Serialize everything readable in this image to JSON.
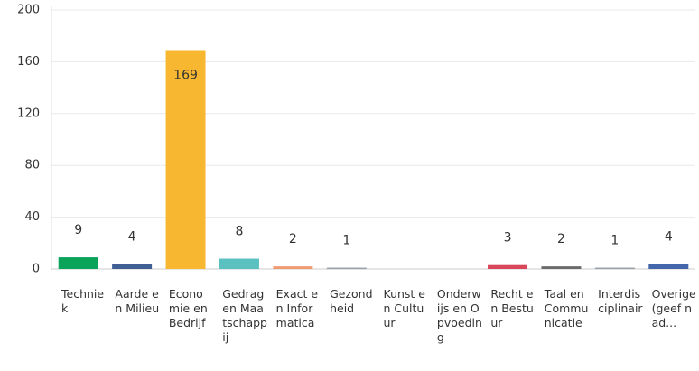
{
  "chart_data": {
    "type": "bar",
    "categories": [
      "Techniek",
      "Aarde en Milieu",
      "Economie en Bedrijf",
      "Gedrag en Maatschappij",
      "Exact en Informatica",
      "Gezondheid",
      "Kunst en Cultuur",
      "Onderwijs en Opvoeding",
      "Recht en Bestuur",
      "Taal en Communicatie",
      "Interdisciplinair",
      "Overige (geef nad..."
    ],
    "values": [
      9,
      4,
      169,
      8,
      2,
      1,
      0,
      0,
      3,
      2,
      1,
      4
    ],
    "value_labels": [
      "9",
      "4",
      "169",
      "8",
      "2",
      "1",
      null,
      null,
      "3",
      "2",
      "1",
      "4"
    ],
    "colors": [
      "#0aa35a",
      "#3f5f95",
      "#f7b731",
      "#5bc0c0",
      "#f29a70",
      "#9aa0a8",
      "#9aa0a8",
      "#9aa0a8",
      "#d9475a",
      "#6b6b6b",
      "#9aa0a8",
      "#4466aa"
    ],
    "ylim": [
      0,
      200
    ],
    "yticks": [
      0,
      40,
      80,
      120,
      160,
      200
    ],
    "grid": true
  }
}
